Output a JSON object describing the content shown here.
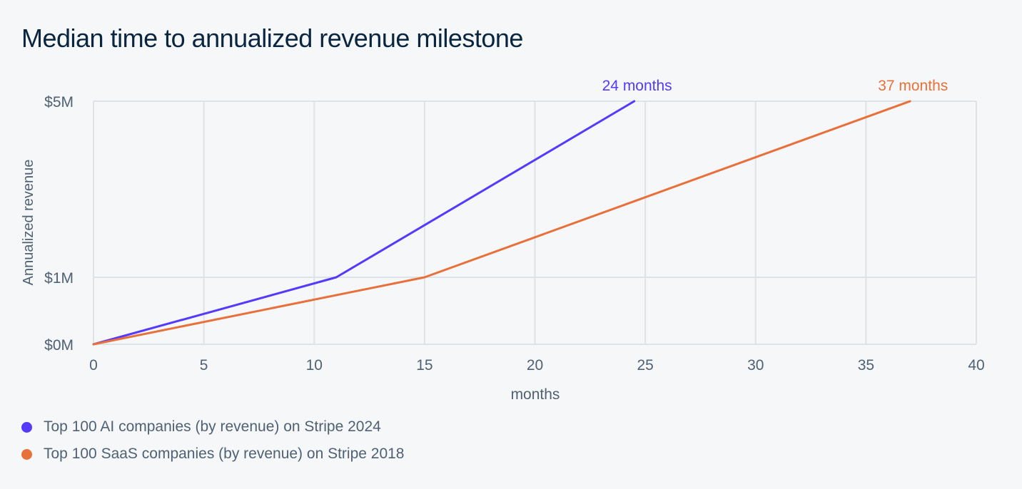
{
  "chart_data": {
    "type": "line",
    "title": "Median time to annualized revenue milestone",
    "xlabel": "months",
    "ylabel": "Annualized revenue",
    "xlim": [
      0,
      40
    ],
    "x_ticks": [
      0,
      5,
      10,
      15,
      20,
      25,
      30,
      35,
      40
    ],
    "y_ticks": [
      {
        "value": 0,
        "label": "$0M"
      },
      {
        "value": 1,
        "label": "$1M"
      },
      {
        "value": 5,
        "label": "$5M"
      }
    ],
    "y_scale": "nonlinear ($0M, $1M, $5M milestones)",
    "grid": true,
    "legend_position": "bottom-left",
    "series": [
      {
        "name": "Top 100 AI companies (by revenue) on Stripe 2024",
        "color": "#533afd",
        "points": [
          {
            "x": 0,
            "y": 0
          },
          {
            "x": 11,
            "y": 1
          },
          {
            "x": 24.5,
            "y": 5
          }
        ],
        "end_label": "24 months"
      },
      {
        "name": "Top 100 SaaS companies (by revenue) on Stripe 2018",
        "color": "#e8703a",
        "points": [
          {
            "x": 0,
            "y": 0
          },
          {
            "x": 15,
            "y": 1
          },
          {
            "x": 37,
            "y": 5
          }
        ],
        "end_label": "37 months"
      }
    ]
  }
}
